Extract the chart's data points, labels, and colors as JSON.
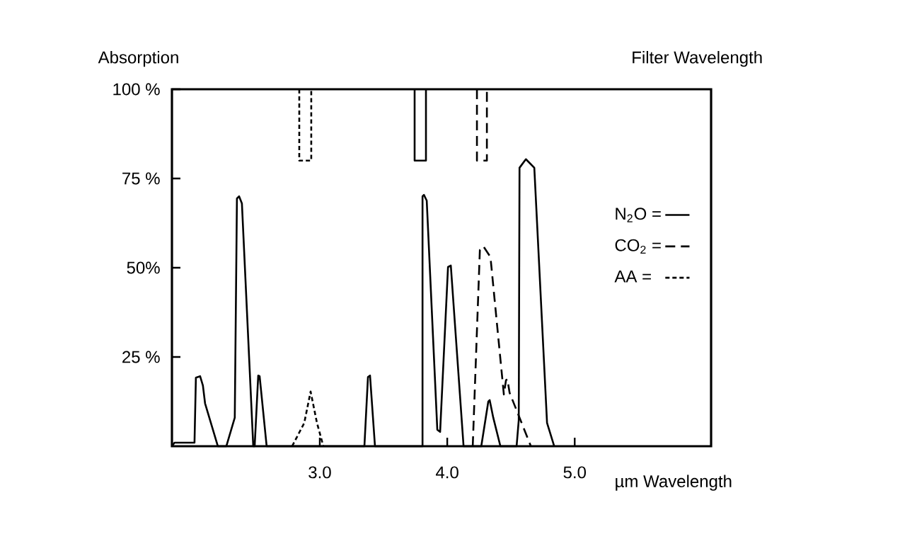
{
  "chart_data": {
    "type": "line",
    "ylabel": "Absorption",
    "xlabel": "µm Wavelength",
    "annotations": [
      "Filter   Wavelength"
    ],
    "xlim": [
      1.84,
      6.07
    ],
    "ylim": [
      0,
      100
    ],
    "xticks": [
      {
        "value": 3,
        "label": "3.0"
      },
      {
        "value": 4,
        "label": "4.0"
      },
      {
        "value": 5,
        "label": "5.0"
      }
    ],
    "yticks": [
      {
        "value": 25,
        "label": "25 %"
      },
      {
        "value": 50,
        "label": "50%"
      },
      {
        "value": 75,
        "label": "75 %"
      },
      {
        "value": 100,
        "label": "100 %"
      }
    ],
    "legend": "right",
    "grid": false,
    "marker": "none",
    "series": [
      {
        "name": "N$_{2}$O =",
        "color": "#000000",
        "line_style": "solid",
        "x": [
          1.84,
          1.86,
          1.92,
          2.017,
          2.028,
          2.061,
          2.083,
          2.1,
          2.2,
          2.267,
          2.333,
          2.35,
          2.367,
          2.389,
          2.478,
          2.489,
          2.517,
          2.528,
          2.583,
          3.35,
          3.378,
          3.394,
          3.433,
          3.806,
          3.806,
          3.817,
          3.839,
          3.922,
          3.944,
          4.006,
          4.028,
          4.128,
          4.267,
          4.322,
          4.333,
          4.361,
          4.417,
          4.544,
          4.561,
          4.567,
          4.617,
          4.683,
          4.783,
          4.839
        ],
        "values": [
          0,
          1,
          1,
          1,
          19.2,
          19.6,
          17,
          12,
          0,
          0,
          8,
          69.4,
          70,
          68,
          0,
          0,
          19.8,
          19.6,
          0,
          0,
          19.4,
          19.8,
          0,
          0,
          70,
          70.4,
          68.8,
          4.6,
          4,
          50.2,
          50.6,
          0,
          0,
          12.5,
          12.9,
          8,
          0,
          0,
          7.3,
          78,
          80.4,
          78,
          6.5,
          0
        ]
      },
      {
        "name": "CO$_{2}$ =",
        "color": "#000000",
        "line_style": "dashed",
        "x": [
          4.2,
          4.256,
          4.283,
          4.339,
          4.444,
          4.461,
          4.472,
          4.489,
          4.656
        ],
        "values": [
          0,
          55,
          56,
          53,
          14.5,
          18.5,
          18.8,
          15,
          0
        ]
      },
      {
        "name": "AA =",
        "color": "#000000",
        "line_style": "dotted",
        "x": [
          2.783,
          2.878,
          2.928,
          2.978,
          3.028
        ],
        "values": [
          0,
          6.5,
          15.3,
          6.5,
          0
        ]
      },
      {
        "color": "#000000",
        "line_style": "solid",
        "x": [
          3.744,
          3.744,
          3.833,
          3.833
        ],
        "values": [
          100,
          80,
          80,
          100
        ]
      },
      {
        "color": "#000000",
        "line_style": "dashed",
        "x": [
          4.233,
          4.233,
          4.311,
          4.311
        ],
        "values": [
          100,
          80,
          80,
          100
        ]
      },
      {
        "color": "#000000",
        "line_style": "dotted",
        "x": [
          2.839,
          2.839,
          2.933,
          2.933
        ],
        "values": [
          100,
          80,
          80,
          100
        ]
      }
    ]
  }
}
